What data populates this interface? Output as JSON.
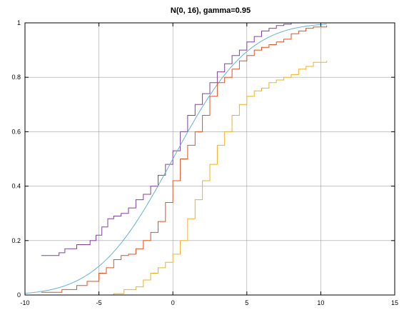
{
  "chart_data": {
    "type": "line",
    "title": "N(0, 16),  gamma=0.95",
    "xlabel": "",
    "ylabel": "",
    "xlim": [
      -10,
      15
    ],
    "ylim": [
      0,
      1
    ],
    "xticks": [
      "-10",
      "-5",
      "0",
      "5",
      "10",
      "15"
    ],
    "yticks": [
      "0",
      "0.2",
      "0.4",
      "0.6",
      "0.8",
      "1"
    ],
    "grid": true,
    "legend": "none",
    "series": [
      {
        "color": "#8040a0",
        "style": "step",
        "x": [
          -8.9,
          -7.7,
          -7.3,
          -6.5,
          -5.6,
          -5.2,
          -4.8,
          -4.4,
          -4.0,
          -3.5,
          -3.0,
          -2.5,
          -2.0,
          -1.5,
          -1.0,
          -0.5,
          0.0,
          0.5,
          1.0,
          1.5,
          2.0,
          2.5,
          3.0,
          3.5,
          4.0,
          4.5,
          5.0,
          5.5,
          6.0,
          6.5,
          7.0,
          7.5,
          8.0,
          9.5,
          10.4
        ],
        "y": [
          0.145,
          0.155,
          0.17,
          0.185,
          0.2,
          0.22,
          0.25,
          0.28,
          0.29,
          0.3,
          0.32,
          0.35,
          0.37,
          0.4,
          0.44,
          0.48,
          0.53,
          0.6,
          0.66,
          0.7,
          0.74,
          0.78,
          0.82,
          0.85,
          0.88,
          0.9,
          0.93,
          0.95,
          0.97,
          0.98,
          0.99,
          0.995,
          1.0,
          1.0,
          1.0
        ]
      },
      {
        "color": "#66b0d8",
        "style": "smooth",
        "mean": 0,
        "sd": 4,
        "xrange": [
          -10,
          10.4
        ]
      },
      {
        "color": "#e05020",
        "style": "step",
        "x": [
          -8.9,
          -7.5,
          -6.5,
          -5.8,
          -5.0,
          -4.5,
          -4.0,
          -3.5,
          -3.0,
          -2.5,
          -2.0,
          -1.5,
          -1.0,
          -0.5,
          0.0,
          0.5,
          1.0,
          1.5,
          2.0,
          2.5,
          3.0,
          3.5,
          4.0,
          4.5,
          5.0,
          5.5,
          6.0,
          6.5,
          7.0,
          7.5,
          8.0,
          8.5,
          9.0,
          9.5,
          10.4
        ],
        "y": [
          0.01,
          0.02,
          0.035,
          0.05,
          0.08,
          0.1,
          0.13,
          0.145,
          0.15,
          0.17,
          0.2,
          0.23,
          0.27,
          0.34,
          0.42,
          0.5,
          0.55,
          0.6,
          0.66,
          0.73,
          0.78,
          0.8,
          0.83,
          0.86,
          0.88,
          0.9,
          0.91,
          0.92,
          0.93,
          0.94,
          0.96,
          0.97,
          0.98,
          0.985,
          0.99
        ]
      },
      {
        "color": "#f0b020",
        "style": "step",
        "x": [
          -8.9,
          -4.6,
          -4.0,
          -3.3,
          -2.5,
          -2.0,
          -1.5,
          -1.0,
          -0.5,
          0.0,
          0.5,
          1.0,
          1.5,
          2.0,
          2.5,
          3.0,
          3.5,
          4.0,
          4.5,
          5.0,
          5.5,
          6.0,
          6.5,
          7.0,
          7.5,
          8.0,
          8.5,
          9.0,
          9.5,
          10.4
        ],
        "y": [
          0.0,
          0.0,
          0.005,
          0.02,
          0.03,
          0.055,
          0.08,
          0.1,
          0.12,
          0.15,
          0.2,
          0.28,
          0.35,
          0.42,
          0.48,
          0.55,
          0.6,
          0.66,
          0.7,
          0.73,
          0.75,
          0.76,
          0.78,
          0.79,
          0.8,
          0.81,
          0.83,
          0.84,
          0.855,
          0.86
        ]
      }
    ]
  }
}
